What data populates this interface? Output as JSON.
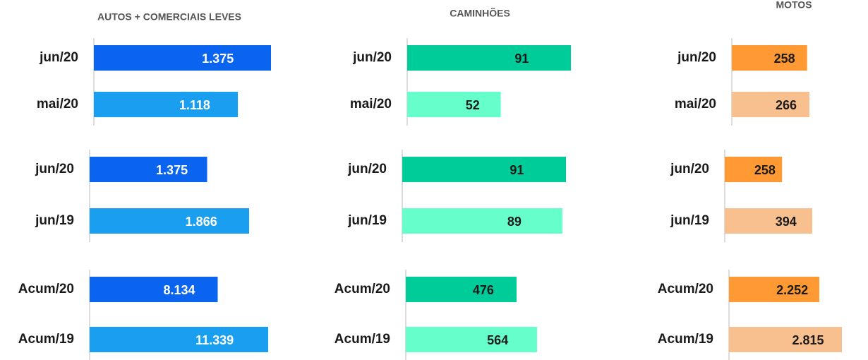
{
  "chart_data": [
    {
      "type": "bar",
      "title": "AUTOS + COMERCIAIS LEVES",
      "categories": [
        "jun/20",
        "mai/20"
      ],
      "values": [
        1375,
        1118
      ],
      "value_labels": [
        "1.375",
        "1.118"
      ],
      "colors": [
        "#0a64f0",
        "#1a9ff0"
      ],
      "label_color": "#ffffff"
    },
    {
      "type": "bar",
      "categories": [
        "jun/20",
        "jun/19"
      ],
      "values": [
        1375,
        1866
      ],
      "value_labels": [
        "1.375",
        "1.866"
      ],
      "colors": [
        "#0a64f0",
        "#1a9ff0"
      ],
      "label_color": "#ffffff"
    },
    {
      "type": "bar",
      "categories": [
        "Acum/20",
        "Acum/19"
      ],
      "values": [
        8134,
        11339
      ],
      "value_labels": [
        "8.134",
        "11.339"
      ],
      "colors": [
        "#0a64f0",
        "#1a9ff0"
      ],
      "label_color": "#ffffff"
    },
    {
      "type": "bar",
      "title": "CAMINHÕES",
      "categories": [
        "jun/20",
        "mai/20"
      ],
      "values": [
        91,
        52
      ],
      "colors": [
        "#00cc99",
        "#66ffcc"
      ],
      "label_color": "#1a1a1a"
    },
    {
      "type": "bar",
      "categories": [
        "jun/20",
        "jun/19"
      ],
      "values": [
        91,
        89
      ],
      "colors": [
        "#00cc99",
        "#66ffcc"
      ],
      "label_color": "#1a1a1a"
    },
    {
      "type": "bar",
      "categories": [
        "Acum/20",
        "Acum/19"
      ],
      "values": [
        476,
        564
      ],
      "colors": [
        "#00cc99",
        "#66ffcc"
      ],
      "label_color": "#1a1a1a"
    },
    {
      "type": "bar",
      "title": "MOTOS",
      "categories": [
        "jun/20",
        "mai/20"
      ],
      "values": [
        258,
        266
      ],
      "colors": [
        "#ff9933",
        "#f9c08f"
      ],
      "label_color": "#1a1a1a"
    },
    {
      "type": "bar",
      "categories": [
        "jun/20",
        "jun/19"
      ],
      "values": [
        258,
        394
      ],
      "colors": [
        "#ff9933",
        "#f9c08f"
      ],
      "label_color": "#1a1a1a"
    },
    {
      "type": "bar",
      "categories": [
        "Acum/20",
        "Acum/19"
      ],
      "values": [
        2252,
        2815
      ],
      "value_labels": [
        "2.252",
        "2.815"
      ],
      "colors": [
        "#ff9933",
        "#f9c08f"
      ],
      "label_color": "#1a1a1a"
    }
  ]
}
